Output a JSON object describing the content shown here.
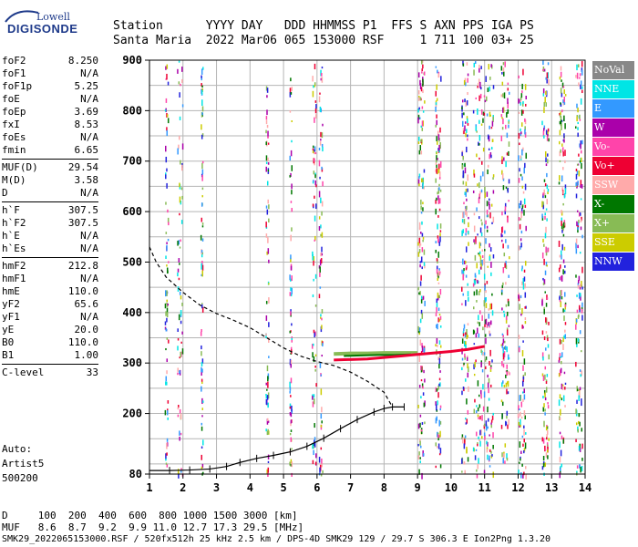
{
  "logo": {
    "top": "Lowell",
    "bottom": "DIGISONDE"
  },
  "header": {
    "line1": "Station      YYYY DAY   DDD HHMMSS P1  FFS S AXN PPS IGA PS",
    "line2": "Santa Maria  2022 Mar06 065 153000 RSF     1 711 100 03+ 25"
  },
  "params": [
    {
      "group": 1,
      "name": "foF2",
      "value": "8.250"
    },
    {
      "group": 1,
      "name": "foF1",
      "value": "N/A"
    },
    {
      "group": 1,
      "name": "foF1p",
      "value": "5.25"
    },
    {
      "group": 1,
      "name": "foE",
      "value": "N/A"
    },
    {
      "group": 1,
      "name": "foEp",
      "value": "3.69"
    },
    {
      "group": 1,
      "name": "fxI",
      "value": "8.53"
    },
    {
      "group": 1,
      "name": "foEs",
      "value": "N/A"
    },
    {
      "group": 1,
      "name": "fmin",
      "value": "6.65"
    },
    {
      "group": 2,
      "name": "MUF(D)",
      "value": "29.54"
    },
    {
      "group": 2,
      "name": "M(D)",
      "value": "3.58"
    },
    {
      "group": 2,
      "name": "D",
      "value": "N/A"
    },
    {
      "group": 3,
      "name": "h`F",
      "value": "307.5"
    },
    {
      "group": 3,
      "name": "h`F2",
      "value": "307.5"
    },
    {
      "group": 3,
      "name": "h`E",
      "value": "N/A"
    },
    {
      "group": 3,
      "name": "h`Es",
      "value": "N/A"
    },
    {
      "group": 4,
      "name": "hmF2",
      "value": "212.8"
    },
    {
      "group": 4,
      "name": "hmF1",
      "value": "N/A"
    },
    {
      "group": 4,
      "name": "hmE",
      "value": "110.0"
    },
    {
      "group": 4,
      "name": "yF2",
      "value": "65.6"
    },
    {
      "group": 4,
      "name": "yF1",
      "value": "N/A"
    },
    {
      "group": 4,
      "name": "yE",
      "value": "20.0"
    },
    {
      "group": 4,
      "name": "B0",
      "value": "110.0"
    },
    {
      "group": 4,
      "name": "B1",
      "value": "1.00"
    },
    {
      "group": 5,
      "name": "C-level",
      "value": "33"
    }
  ],
  "autoscale": {
    "line1": "Auto:",
    "line2": "Artist5",
    "line3": "500200"
  },
  "legend": [
    {
      "label": "NoVal",
      "color": "#888888"
    },
    {
      "label": "NNE",
      "color": "#00e5e5"
    },
    {
      "label": "E",
      "color": "#3399ff"
    },
    {
      "label": "W",
      "color": "#aa00aa"
    },
    {
      "label": "Vo-",
      "color": "#ff44aa"
    },
    {
      "label": "Vo+",
      "color": "#ee0033"
    },
    {
      "label": "SSW",
      "color": "#ffaaaa"
    },
    {
      "label": "X-",
      "color": "#007700"
    },
    {
      "label": "X+",
      "color": "#88bb55"
    },
    {
      "label": "SSE",
      "color": "#cccc00"
    },
    {
      "label": "NNW",
      "color": "#2222dd"
    }
  ],
  "footer": {
    "d_row": "D     100  200  400  600  800 1000 1500 3000 [km]",
    "muf_row": "MUF   8.6  8.7  9.2  9.9 11.0 12.7 17.3 29.5 [MHz]",
    "info": "SMK29_2022065153000.RSF / 520fx512h 25 kHz 2.5 km / DPS-4D SMK29 129 / 29.7 S 306.3 E Ion2Png 1.3.20"
  },
  "chart_data": {
    "type": "scatter",
    "x_ticks": [
      "1",
      "2",
      "3",
      "4",
      "5",
      "6",
      "7",
      "8",
      "9",
      "10",
      "11",
      "12",
      "13",
      "14"
    ],
    "y_ticks": [
      "80",
      "200",
      "300",
      "400",
      "500",
      "600",
      "700",
      "800",
      "900"
    ],
    "xlim": [
      1,
      14
    ],
    "ylim": [
      80,
      900
    ],
    "x_grid": [
      1,
      2,
      3,
      4,
      5,
      6,
      7,
      8,
      9,
      10,
      11,
      12,
      13,
      14
    ],
    "y_grid": [
      100,
      150,
      200,
      250,
      300,
      350,
      400,
      450,
      500,
      550,
      600,
      650,
      700,
      750,
      800,
      850,
      900
    ],
    "grid": true,
    "profile_dashed": [
      [
        1.0,
        530
      ],
      [
        1.2,
        500
      ],
      [
        1.5,
        470
      ],
      [
        2,
        440
      ],
      [
        2.5,
        415
      ],
      [
        3,
        398
      ],
      [
        3.5,
        385
      ],
      [
        4,
        370
      ],
      [
        4.5,
        350
      ],
      [
        5,
        330
      ],
      [
        5.5,
        314
      ],
      [
        6,
        303
      ],
      [
        6.5,
        295
      ],
      [
        7,
        282
      ],
      [
        7.5,
        264
      ],
      [
        8,
        242
      ],
      [
        8.25,
        213
      ]
    ],
    "profile_solid": [
      [
        1.0,
        87
      ],
      [
        1.6,
        87
      ],
      [
        2.2,
        88
      ],
      [
        2.8,
        90
      ],
      [
        3.3,
        95
      ],
      [
        3.7,
        103
      ],
      [
        4.2,
        111
      ],
      [
        4.7,
        117
      ],
      [
        5.2,
        124
      ],
      [
        5.7,
        135
      ],
      [
        6.2,
        151
      ],
      [
        6.7,
        170
      ],
      [
        7.2,
        188
      ],
      [
        7.7,
        203
      ],
      [
        8.0,
        210
      ],
      [
        8.25,
        213
      ],
      [
        8.6,
        213
      ]
    ],
    "trace_vo_plus": [
      [
        6.5,
        306
      ],
      [
        7,
        307
      ],
      [
        7.5,
        308
      ],
      [
        8,
        311
      ],
      [
        8.5,
        314
      ],
      [
        9,
        317
      ],
      [
        9.5,
        320
      ],
      [
        10,
        323
      ],
      [
        10.5,
        327
      ],
      [
        11,
        333
      ]
    ],
    "trace_x_plus": [
      [
        6.5,
        318
      ],
      [
        7,
        319
      ],
      [
        7.5,
        319
      ],
      [
        8,
        320
      ],
      [
        8.5,
        320
      ],
      [
        9,
        320
      ]
    ],
    "trace_x_minus": [
      [
        6.8,
        314
      ],
      [
        7.3,
        315
      ],
      [
        7.8,
        316
      ],
      [
        8.3,
        316
      ],
      [
        8.8,
        317
      ]
    ]
  }
}
